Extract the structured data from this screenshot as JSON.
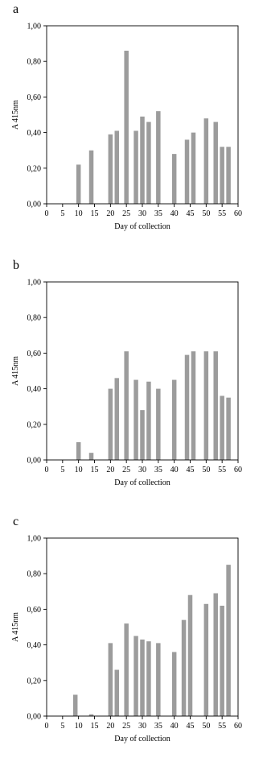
{
  "chart_data": [
    {
      "panel": "a",
      "type": "bar",
      "xlabel": "Day of collection",
      "ylabel": "A 415nm",
      "xlim": [
        0,
        60
      ],
      "ylim": [
        0,
        1
      ],
      "x_ticks": [
        "0",
        "5",
        "10",
        "15",
        "20",
        "25",
        "30",
        "35",
        "40",
        "45",
        "50",
        "55",
        "60"
      ],
      "y_ticks": [
        "0,00",
        "0,20",
        "0,40",
        "0,60",
        "0,80",
        "1,00"
      ],
      "grid": false,
      "bar_color": "#9c9c9c",
      "x": [
        10,
        14,
        20,
        22,
        25,
        28,
        30,
        32,
        35,
        40,
        44,
        46,
        50,
        53,
        55,
        57
      ],
      "values": [
        0.22,
        0.3,
        0.39,
        0.41,
        0.86,
        0.41,
        0.49,
        0.46,
        0.52,
        0.28,
        0.36,
        0.4,
        0.48,
        0.46,
        0.32,
        0.32
      ]
    },
    {
      "panel": "b",
      "type": "bar",
      "xlabel": "Day of collection",
      "ylabel": "A 415nm",
      "xlim": [
        0,
        60
      ],
      "ylim": [
        0,
        1
      ],
      "x_ticks": [
        "0",
        "5",
        "10",
        "15",
        "20",
        "25",
        "30",
        "35",
        "40",
        "45",
        "50",
        "55",
        "60"
      ],
      "y_ticks": [
        "0,00",
        "0,20",
        "0,40",
        "0,60",
        "0,80",
        "1,00"
      ],
      "grid": false,
      "bar_color": "#9c9c9c",
      "x": [
        10,
        14,
        20,
        22,
        25,
        28,
        30,
        32,
        35,
        40,
        44,
        46,
        50,
        53,
        55,
        57
      ],
      "values": [
        0.1,
        0.04,
        0.4,
        0.46,
        0.61,
        0.45,
        0.28,
        0.44,
        0.4,
        0.45,
        0.59,
        0.61,
        0.61,
        0.61,
        0.36,
        0.35
      ]
    },
    {
      "panel": "c",
      "type": "bar",
      "xlabel": "Day of collection",
      "ylabel": "A 415nm",
      "xlim": [
        0,
        60
      ],
      "ylim": [
        0,
        1
      ],
      "x_ticks": [
        "0",
        "5",
        "10",
        "15",
        "20",
        "25",
        "30",
        "35",
        "40",
        "45",
        "50",
        "55",
        "60"
      ],
      "y_ticks": [
        "0,00",
        "0,20",
        "0,40",
        "0,60",
        "0,80",
        "1,00"
      ],
      "grid": false,
      "bar_color": "#9c9c9c",
      "x": [
        9,
        14,
        20,
        22,
        25,
        28,
        30,
        32,
        35,
        40,
        43,
        45,
        50,
        53,
        55,
        57
      ],
      "values": [
        0.12,
        0.01,
        0.41,
        0.26,
        0.52,
        0.45,
        0.43,
        0.42,
        0.41,
        0.36,
        0.54,
        0.68,
        0.63,
        0.69,
        0.62,
        0.85
      ]
    }
  ]
}
